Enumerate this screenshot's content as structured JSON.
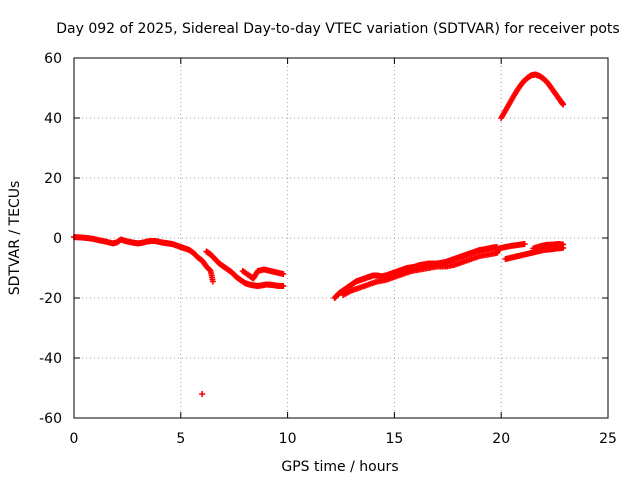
{
  "chart_data": {
    "type": "scatter",
    "title": "Day 092 of 2025, Sidereal Day-to-day VTEC variation (SDTVAR) for receiver pots",
    "xlabel": "GPS time / hours",
    "ylabel": "SDTVAR / TECUs",
    "xlim": [
      0,
      25
    ],
    "ylim": [
      -60,
      60
    ],
    "xticks": [
      0,
      5,
      10,
      15,
      20,
      25
    ],
    "yticks": [
      -60,
      -40,
      -20,
      0,
      20,
      40,
      60
    ],
    "grid": true,
    "marker": "+",
    "series_color": "#ff0000",
    "series": [
      {
        "name": "SDTVAR",
        "points": [
          [
            0.0,
            0.3
          ],
          [
            0.3,
            0.2
          ],
          [
            0.6,
            0.0
          ],
          [
            0.9,
            -0.3
          ],
          [
            1.2,
            -0.8
          ],
          [
            1.5,
            -1.2
          ],
          [
            1.8,
            -1.8
          ],
          [
            2.0,
            -1.5
          ],
          [
            2.2,
            -0.5
          ],
          [
            2.4,
            -1.0
          ],
          [
            2.6,
            -1.3
          ],
          [
            2.8,
            -1.6
          ],
          [
            3.0,
            -1.8
          ],
          [
            3.2,
            -1.6
          ],
          [
            3.4,
            -1.2
          ],
          [
            3.6,
            -1.0
          ],
          [
            3.8,
            -1.0
          ],
          [
            4.0,
            -1.3
          ],
          [
            4.2,
            -1.6
          ],
          [
            4.4,
            -1.8
          ],
          [
            4.6,
            -2.0
          ],
          [
            4.8,
            -2.5
          ],
          [
            5.0,
            -3.0
          ],
          [
            5.2,
            -3.5
          ],
          [
            5.4,
            -4.0
          ],
          [
            5.6,
            -5.0
          ],
          [
            5.8,
            -6.5
          ],
          [
            6.0,
            -7.5
          ],
          [
            6.2,
            -9.5
          ],
          [
            6.4,
            -11.0
          ],
          [
            6.5,
            -14.5
          ],
          [
            6.2,
            -4.5
          ],
          [
            6.4,
            -5.5
          ],
          [
            6.6,
            -7.0
          ],
          [
            6.8,
            -8.5
          ],
          [
            7.0,
            -9.5
          ],
          [
            7.2,
            -10.5
          ],
          [
            7.4,
            -11.5
          ],
          [
            7.6,
            -13.0
          ],
          [
            7.8,
            -14.0
          ],
          [
            8.0,
            -15.0
          ],
          [
            8.2,
            -15.5
          ],
          [
            8.4,
            -15.8
          ],
          [
            8.6,
            -16.0
          ],
          [
            8.8,
            -15.8
          ],
          [
            9.0,
            -15.5
          ],
          [
            9.2,
            -15.6
          ],
          [
            9.4,
            -15.8
          ],
          [
            9.6,
            -16.0
          ],
          [
            9.8,
            -16.0
          ],
          [
            7.9,
            -11.0
          ],
          [
            8.2,
            -12.5
          ],
          [
            8.4,
            -13.5
          ],
          [
            8.6,
            -11.0
          ],
          [
            8.9,
            -10.5
          ],
          [
            9.2,
            -11.0
          ],
          [
            9.5,
            -11.5
          ],
          [
            9.8,
            -12.0
          ],
          [
            6.0,
            -52.0
          ],
          [
            12.2,
            -20.0
          ],
          [
            12.4,
            -18.5
          ],
          [
            12.6,
            -17.5
          ],
          [
            12.8,
            -16.5
          ],
          [
            13.0,
            -15.5
          ],
          [
            13.2,
            -14.5
          ],
          [
            13.4,
            -14.0
          ],
          [
            13.6,
            -13.5
          ],
          [
            13.8,
            -13.0
          ],
          [
            14.0,
            -12.5
          ],
          [
            14.2,
            -12.5
          ],
          [
            14.4,
            -12.8
          ],
          [
            14.6,
            -12.5
          ],
          [
            14.8,
            -12.0
          ],
          [
            15.0,
            -11.5
          ],
          [
            15.2,
            -11.0
          ],
          [
            15.4,
            -10.5
          ],
          [
            15.6,
            -10.0
          ],
          [
            15.8,
            -9.8
          ],
          [
            16.0,
            -9.5
          ],
          [
            16.2,
            -9.0
          ],
          [
            16.4,
            -8.8
          ],
          [
            16.6,
            -8.5
          ],
          [
            16.8,
            -8.5
          ],
          [
            17.0,
            -8.5
          ],
          [
            17.2,
            -8.3
          ],
          [
            17.4,
            -8.0
          ],
          [
            17.6,
            -7.5
          ],
          [
            17.8,
            -7.0
          ],
          [
            18.0,
            -6.5
          ],
          [
            18.2,
            -6.0
          ],
          [
            18.4,
            -5.5
          ],
          [
            18.6,
            -5.0
          ],
          [
            18.8,
            -4.5
          ],
          [
            19.0,
            -4.0
          ],
          [
            19.2,
            -3.8
          ],
          [
            19.4,
            -3.5
          ],
          [
            19.6,
            -3.2
          ],
          [
            19.8,
            -3.0
          ],
          [
            12.6,
            -19.0
          ],
          [
            13.0,
            -17.5
          ],
          [
            13.4,
            -16.5
          ],
          [
            13.8,
            -15.5
          ],
          [
            14.2,
            -14.5
          ],
          [
            14.6,
            -14.0
          ],
          [
            15.0,
            -13.0
          ],
          [
            15.4,
            -12.0
          ],
          [
            15.8,
            -11.0
          ],
          [
            16.2,
            -10.5
          ],
          [
            16.6,
            -10.0
          ],
          [
            17.0,
            -9.5
          ],
          [
            17.4,
            -9.5
          ],
          [
            17.8,
            -9.0
          ],
          [
            18.2,
            -8.0
          ],
          [
            18.6,
            -7.0
          ],
          [
            19.0,
            -6.0
          ],
          [
            19.4,
            -5.5
          ],
          [
            19.8,
            -5.0
          ],
          [
            19.9,
            -3.5
          ],
          [
            20.2,
            -3.0
          ],
          [
            20.5,
            -2.6
          ],
          [
            20.8,
            -2.3
          ],
          [
            21.1,
            -2.0
          ],
          [
            20.2,
            -7.0
          ],
          [
            20.5,
            -6.5
          ],
          [
            20.8,
            -6.0
          ],
          [
            21.1,
            -5.5
          ],
          [
            21.4,
            -5.0
          ],
          [
            21.7,
            -4.5
          ],
          [
            22.0,
            -4.0
          ],
          [
            22.3,
            -3.8
          ],
          [
            22.6,
            -3.5
          ],
          [
            22.9,
            -3.3
          ],
          [
            21.5,
            -3.5
          ],
          [
            21.8,
            -2.8
          ],
          [
            22.1,
            -2.3
          ],
          [
            22.4,
            -2.2
          ],
          [
            22.7,
            -2.0
          ],
          [
            22.9,
            -2.2
          ],
          [
            20.0,
            40.0
          ],
          [
            20.2,
            42.5
          ],
          [
            20.4,
            45.0
          ],
          [
            20.6,
            47.5
          ],
          [
            20.8,
            49.8
          ],
          [
            21.0,
            51.8
          ],
          [
            21.2,
            53.2
          ],
          [
            21.4,
            54.2
          ],
          [
            21.6,
            54.5
          ],
          [
            21.8,
            54.0
          ],
          [
            22.0,
            53.0
          ],
          [
            22.2,
            51.5
          ],
          [
            22.4,
            49.5
          ],
          [
            22.6,
            47.5
          ],
          [
            22.8,
            45.5
          ],
          [
            22.9,
            44.5
          ]
        ]
      }
    ]
  }
}
